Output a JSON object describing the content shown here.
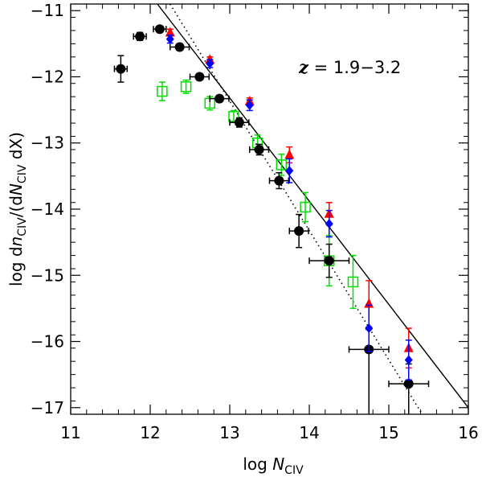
{
  "chart_data": {
    "type": "scatter",
    "title": "",
    "xlabel_prefix": "log",
    "xlabel_var": "N",
    "xlabel_sub": "CIV",
    "ylabel_pre": "log d",
    "ylabel_n": "n",
    "ylabel_sub1": "CIV",
    "ylabel_mid": "/(d",
    "ylabel_N": "N",
    "ylabel_sub2": "CIV",
    "ylabel_post": " dX)",
    "annotation_z": "z",
    "annotation_text": " =  1.9−3.2",
    "xlim": [
      11,
      16
    ],
    "ylim": [
      -17.1,
      -10.9
    ],
    "xticks": [
      11,
      12,
      13,
      14,
      15,
      16
    ],
    "xtick_labels": [
      "11",
      "12",
      "13",
      "14",
      "15",
      "16"
    ],
    "yticks": [
      -17,
      -16,
      -15,
      -14,
      -13,
      -12,
      -11
    ],
    "ytick_labels": [
      "−17",
      "−16",
      "−15",
      "−14",
      "−13",
      "−12",
      "−11"
    ],
    "lines": [
      {
        "name": "solid-fit",
        "style": "solid",
        "x": [
          12.09,
          16.0
        ],
        "y": [
          -10.9,
          -17.0
        ]
      },
      {
        "name": "dotted-fit",
        "style": "dotted",
        "x": [
          12.25,
          15.42
        ],
        "y": [
          -10.9,
          -17.1
        ]
      }
    ],
    "series": [
      {
        "name": "black-circles",
        "marker": "circle",
        "color": "#000000",
        "points": [
          {
            "x": 11.63,
            "y": -11.88,
            "xerr": 0.08,
            "yerr": 0.2
          },
          {
            "x": 11.87,
            "y": -11.39,
            "xerr": 0.08,
            "yerr": 0.06
          },
          {
            "x": 12.12,
            "y": -11.28,
            "xerr": 0.08,
            "yerr": 0.04
          },
          {
            "x": 12.37,
            "y": -11.55,
            "xerr": 0.12,
            "yerr": 0.05
          },
          {
            "x": 12.62,
            "y": -12.0,
            "xerr": 0.12,
            "yerr": 0.05
          },
          {
            "x": 12.87,
            "y": -12.33,
            "xerr": 0.12,
            "yerr": 0.05
          },
          {
            "x": 13.12,
            "y": -12.69,
            "xerr": 0.12,
            "yerr": 0.07
          },
          {
            "x": 13.37,
            "y": -13.1,
            "xerr": 0.12,
            "yerr": 0.08
          },
          {
            "x": 13.62,
            "y": -13.57,
            "xerr": 0.12,
            "yerr": 0.12
          },
          {
            "x": 13.87,
            "y": -14.33,
            "xerr": 0.12,
            "yerr": 0.25
          },
          {
            "x": 14.25,
            "y": -14.78,
            "xerr": 0.25,
            "yerr": 0.25
          },
          {
            "x": 14.75,
            "y": -16.12,
            "xerr": 0.25,
            "yerr_up": 0.3,
            "yerr_down": 1.0
          },
          {
            "x": 15.25,
            "y": -16.64,
            "xerr": 0.25,
            "yerr_up": 0.3,
            "yerr_down": 0.6
          }
        ]
      },
      {
        "name": "green-squares",
        "marker": "square",
        "color": "#00dd00",
        "points": [
          {
            "x": 12.15,
            "y": -12.22,
            "yerr": 0.14
          },
          {
            "x": 12.45,
            "y": -12.15,
            "yerr": 0.1
          },
          {
            "x": 12.75,
            "y": -12.4,
            "yerr": 0.1
          },
          {
            "x": 13.05,
            "y": -12.6,
            "yerr": 0.09
          },
          {
            "x": 13.35,
            "y": -13.0,
            "yerr": 0.12
          },
          {
            "x": 13.65,
            "y": -13.33,
            "yerr": 0.16
          },
          {
            "x": 13.95,
            "y": -13.97,
            "yerr": 0.22
          },
          {
            "x": 14.25,
            "y": -14.78,
            "yerr": 0.38
          },
          {
            "x": 14.55,
            "y": -15.1,
            "yerr": 0.4
          }
        ]
      },
      {
        "name": "red-triangles",
        "marker": "triangle",
        "color": "#ff0000",
        "points": [
          {
            "x": 12.25,
            "y": -11.33,
            "yerr": 0.05
          },
          {
            "x": 12.75,
            "y": -11.74,
            "yerr": 0.04
          },
          {
            "x": 13.25,
            "y": -12.37,
            "yerr": 0.05
          },
          {
            "x": 13.75,
            "y": -13.18,
            "yerr": 0.12
          },
          {
            "x": 14.25,
            "y": -14.07,
            "yerr": 0.17
          },
          {
            "x": 14.75,
            "y": -15.43,
            "yerr": 0.35
          },
          {
            "x": 15.25,
            "y": -16.1,
            "yerr": 0.3
          }
        ]
      },
      {
        "name": "blue-diamonds",
        "marker": "diamond",
        "color": "#0000ff",
        "points": [
          {
            "x": 12.25,
            "y": -11.43,
            "yerr": 0.06
          },
          {
            "x": 12.75,
            "y": -11.8,
            "yerr": 0.06
          },
          {
            "x": 13.25,
            "y": -12.43,
            "yerr": 0.08
          },
          {
            "x": 13.75,
            "y": -13.42,
            "yerr": 0.18
          },
          {
            "x": 14.25,
            "y": -14.22,
            "yerr": 0.2
          },
          {
            "x": 14.75,
            "y": -15.8,
            "yerr": 0.35
          },
          {
            "x": 15.25,
            "y": -16.28,
            "yerr": 0.3
          }
        ]
      }
    ]
  }
}
